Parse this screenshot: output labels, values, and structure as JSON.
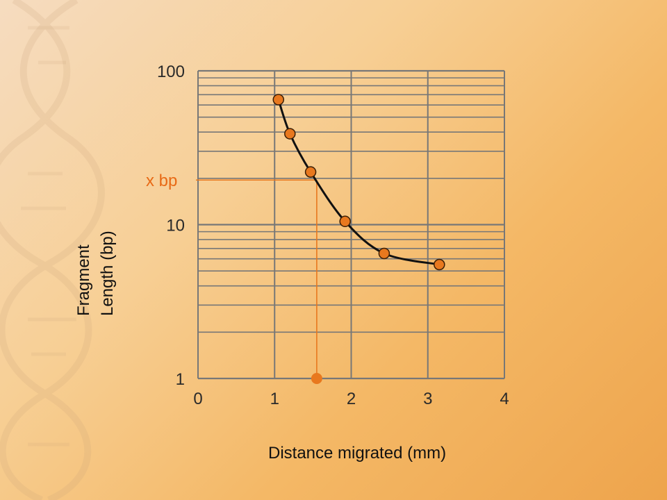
{
  "chart_data": {
    "type": "scatter",
    "xlabel": "Distance migrated (mm)",
    "ylabel_lines": [
      "Fragment",
      "Length (bp)"
    ],
    "x_ticks": [
      0,
      1,
      2,
      3,
      4
    ],
    "y_ticks": [
      1,
      10,
      100
    ],
    "x_tick_labels": [
      "0",
      "1",
      "2",
      "3",
      "4"
    ],
    "y_tick_labels": [
      "1",
      "10",
      "100"
    ],
    "xlim": [
      0,
      4
    ],
    "ylim": [
      1,
      100
    ],
    "y_scale": "log",
    "grid": true,
    "points": [
      {
        "x": 1.05,
        "y": 65
      },
      {
        "x": 1.2,
        "y": 39
      },
      {
        "x": 1.47,
        "y": 22
      },
      {
        "x": 1.92,
        "y": 10.5
      },
      {
        "x": 2.43,
        "y": 6.5
      },
      {
        "x": 3.15,
        "y": 5.5
      }
    ],
    "annotation": {
      "label": "x bp",
      "y": 19.5,
      "x": 1.55
    },
    "colors": {
      "point_fill": "#e8781e",
      "point_stroke": "#3a1e05",
      "guide_line": "#e8781e",
      "curve": "#111111",
      "grid": "#777777",
      "annotation_text": "#e86a16"
    }
  }
}
